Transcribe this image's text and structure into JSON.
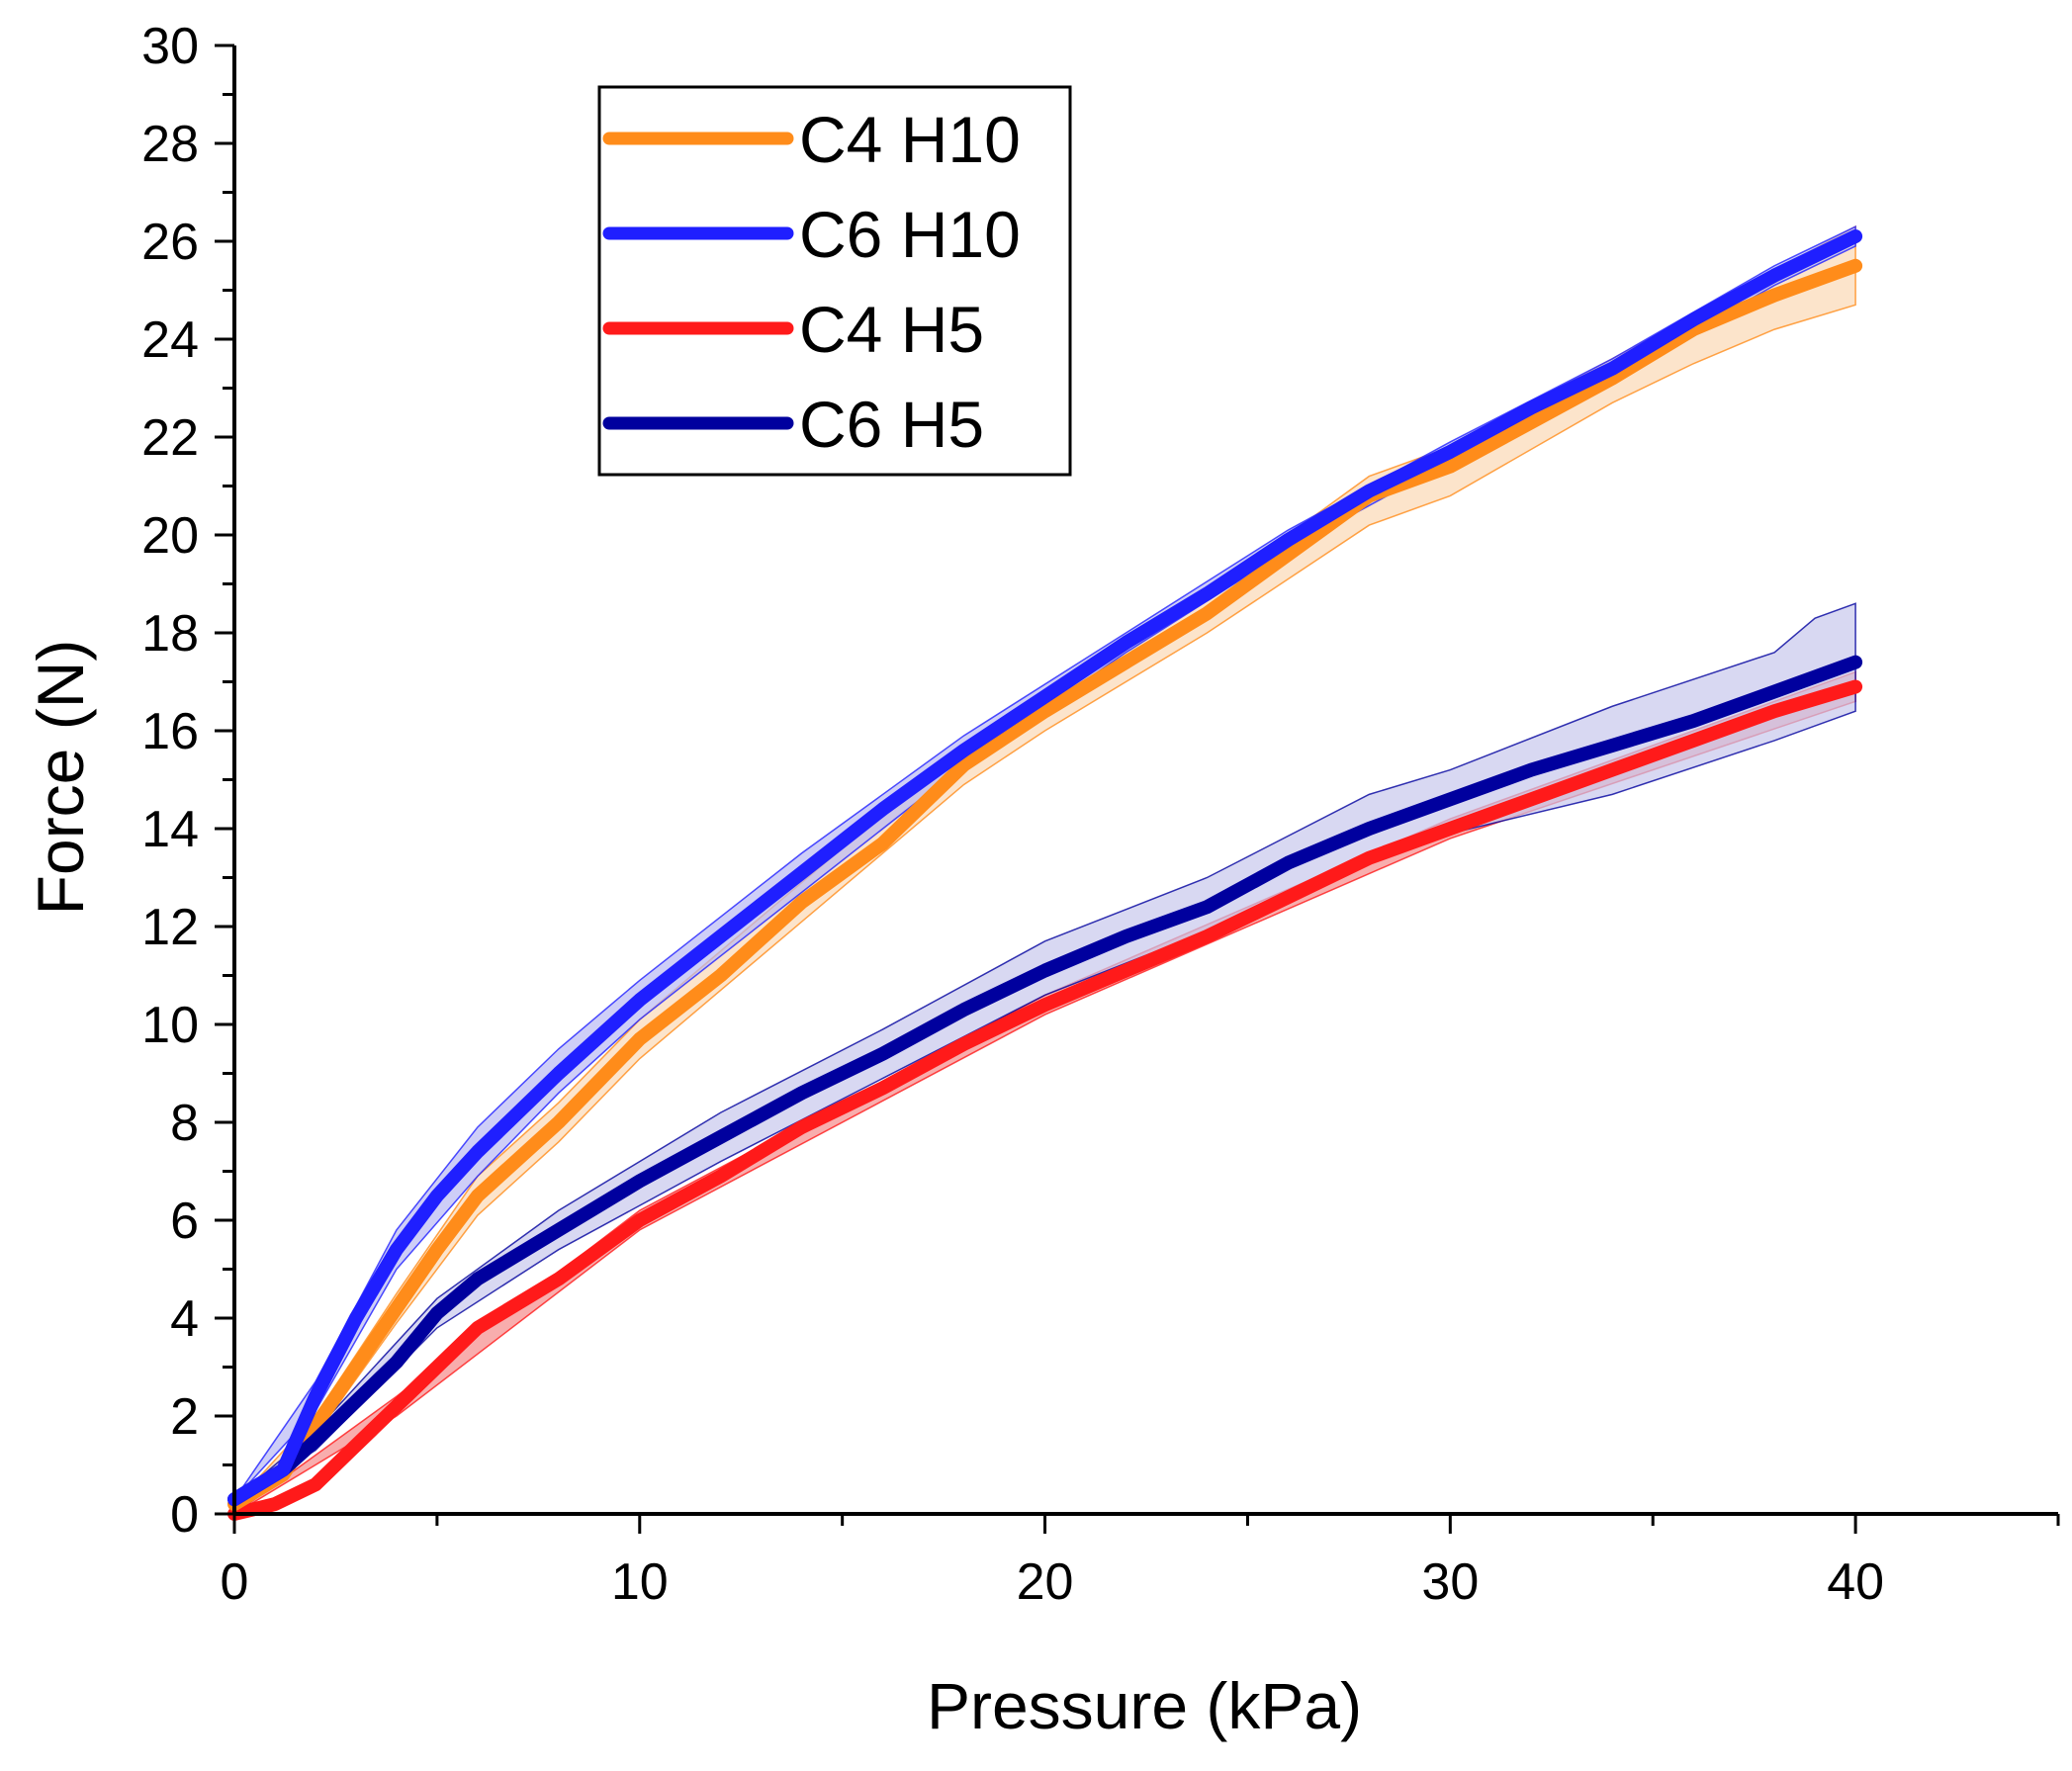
{
  "chart_data": {
    "type": "line",
    "title": "",
    "xlabel": "Pressure (kPa)",
    "ylabel": "Force (N)",
    "xlim": [
      0,
      45
    ],
    "ylim": [
      0,
      30
    ],
    "x_ticks": [
      0,
      10,
      20,
      30,
      40
    ],
    "x_tick_labels": [
      "0",
      "10",
      "20",
      "30",
      "40"
    ],
    "y_ticks": [
      0,
      2,
      4,
      6,
      8,
      10,
      12,
      14,
      16,
      18,
      20,
      22,
      24,
      26,
      28,
      30
    ],
    "y_tick_labels": [
      "0",
      "2",
      "4",
      "6",
      "8",
      "10",
      "12",
      "14",
      "16",
      "18",
      "20",
      "22",
      "24",
      "26",
      "28",
      "30"
    ],
    "grid": false,
    "legend_position": "top-left",
    "series": [
      {
        "name": "C4 H10",
        "color": "#ff8c1a",
        "band_color": "#fbd9b5",
        "points": [
          [
            0,
            0.2
          ],
          [
            1.2,
            0.8
          ],
          [
            2,
            1.8
          ],
          [
            3,
            3
          ],
          [
            4,
            4.2
          ],
          [
            5,
            5.4
          ],
          [
            6,
            6.5
          ],
          [
            8,
            8
          ],
          [
            10,
            9.7
          ],
          [
            12,
            11
          ],
          [
            14,
            12.5
          ],
          [
            16,
            13.7
          ],
          [
            18,
            15.3
          ],
          [
            20,
            16.4
          ],
          [
            22,
            17.4
          ],
          [
            24,
            18.4
          ],
          [
            26,
            19.6
          ],
          [
            28,
            20.8
          ],
          [
            30,
            21.4
          ],
          [
            32,
            22.3
          ],
          [
            34,
            23.2
          ],
          [
            36,
            24.2
          ],
          [
            38,
            24.9
          ],
          [
            40,
            25.5
          ]
        ],
        "band": [
          [
            0,
            0.2,
            0.2
          ],
          [
            2,
            1.6,
            2.0
          ],
          [
            4,
            3.9,
            4.5
          ],
          [
            6,
            6.1,
            6.9
          ],
          [
            8,
            7.6,
            8.4
          ],
          [
            10,
            9.3,
            10.1
          ],
          [
            14,
            12.1,
            12.9
          ],
          [
            18,
            14.9,
            15.7
          ],
          [
            20,
            16.0,
            16.8
          ],
          [
            24,
            18.0,
            18.8
          ],
          [
            28,
            20.2,
            21.2
          ],
          [
            30,
            20.8,
            21.8
          ],
          [
            34,
            22.7,
            23.6
          ],
          [
            36,
            23.5,
            24.5
          ],
          [
            38,
            24.2,
            25.4
          ],
          [
            40,
            24.7,
            26.3
          ]
        ]
      },
      {
        "name": "C6 H10",
        "color": "#1f1fff",
        "band_color": "#b9b9f3",
        "points": [
          [
            0,
            0.3
          ],
          [
            1.2,
            0.9
          ],
          [
            2,
            2.4
          ],
          [
            3,
            4.0
          ],
          [
            4,
            5.4
          ],
          [
            5,
            6.5
          ],
          [
            6,
            7.4
          ],
          [
            8,
            9.0
          ],
          [
            10,
            10.5
          ],
          [
            12,
            11.8
          ],
          [
            14,
            13.1
          ],
          [
            16,
            14.4
          ],
          [
            18,
            15.6
          ],
          [
            20,
            16.7
          ],
          [
            22,
            17.8
          ],
          [
            24,
            18.8
          ],
          [
            26,
            19.9
          ],
          [
            28,
            20.9
          ],
          [
            30,
            21.7
          ],
          [
            32,
            22.6
          ],
          [
            34,
            23.4
          ],
          [
            36,
            24.4
          ],
          [
            38,
            25.3
          ],
          [
            40,
            26.1
          ]
        ],
        "band": [
          [
            0,
            0.3,
            0.3
          ],
          [
            2,
            2.1,
            2.7
          ],
          [
            4,
            5.0,
            5.8
          ],
          [
            6,
            6.9,
            7.9
          ],
          [
            8,
            8.6,
            9.5
          ],
          [
            10,
            10.1,
            10.9
          ],
          [
            14,
            12.7,
            13.5
          ],
          [
            18,
            15.3,
            15.9
          ],
          [
            22,
            17.6,
            18.0
          ],
          [
            26,
            19.7,
            20.1
          ],
          [
            30,
            21.5,
            21.9
          ],
          [
            34,
            23.2,
            23.6
          ],
          [
            38,
            25.1,
            25.5
          ],
          [
            40,
            25.9,
            26.3
          ]
        ]
      },
      {
        "name": "C4 H5",
        "color": "#ff1a1a",
        "band_color": "#f58a8a",
        "points": [
          [
            0,
            0
          ],
          [
            1,
            0.2
          ],
          [
            2,
            0.6
          ],
          [
            3,
            1.4
          ],
          [
            4,
            2.2
          ],
          [
            5,
            3.0
          ],
          [
            6,
            3.8
          ],
          [
            8,
            4.8
          ],
          [
            10,
            6.0
          ],
          [
            12,
            6.9
          ],
          [
            14,
            7.9
          ],
          [
            16,
            8.7
          ],
          [
            18,
            9.6
          ],
          [
            20,
            10.4
          ],
          [
            22,
            11.1
          ],
          [
            24,
            11.8
          ],
          [
            26,
            12.6
          ],
          [
            28,
            13.4
          ],
          [
            30,
            14.0
          ],
          [
            32,
            14.6
          ],
          [
            34,
            15.2
          ],
          [
            36,
            15.8
          ],
          [
            38,
            16.4
          ],
          [
            40,
            16.9
          ]
        ],
        "band": [
          [
            0,
            0,
            0
          ],
          [
            4,
            2.0,
            2.4
          ],
          [
            10,
            5.8,
            6.2
          ],
          [
            20,
            10.2,
            10.6
          ],
          [
            30,
            13.8,
            14.2
          ],
          [
            40,
            16.6,
            17.2
          ]
        ]
      },
      {
        "name": "C6 H5",
        "color": "#00009e",
        "band_color": "#c8c8ec",
        "points": [
          [
            0,
            0.3
          ],
          [
            1.2,
            0.9
          ],
          [
            2,
            1.5
          ],
          [
            3,
            2.3
          ],
          [
            4,
            3.1
          ],
          [
            5,
            4.1
          ],
          [
            6,
            4.8
          ],
          [
            8,
            5.8
          ],
          [
            10,
            6.8
          ],
          [
            12,
            7.7
          ],
          [
            14,
            8.6
          ],
          [
            16,
            9.4
          ],
          [
            18,
            10.3
          ],
          [
            20,
            11.1
          ],
          [
            22,
            11.8
          ],
          [
            24,
            12.4
          ],
          [
            26,
            13.3
          ],
          [
            28,
            14.0
          ],
          [
            30,
            14.6
          ],
          [
            32,
            15.2
          ],
          [
            34,
            15.7
          ],
          [
            36,
            16.2
          ],
          [
            38,
            16.8
          ],
          [
            40,
            17.4
          ]
        ],
        "band": [
          [
            0,
            0.3,
            0.3
          ],
          [
            2,
            1.3,
            1.7
          ],
          [
            5,
            3.8,
            4.4
          ],
          [
            8,
            5.4,
            6.2
          ],
          [
            12,
            7.2,
            8.2
          ],
          [
            16,
            8.9,
            9.9
          ],
          [
            20,
            10.6,
            11.7
          ],
          [
            24,
            11.9,
            13.0
          ],
          [
            28,
            13.4,
            14.7
          ],
          [
            30,
            13.9,
            15.2
          ],
          [
            34,
            14.7,
            16.5
          ],
          [
            38,
            15.8,
            17.6
          ],
          [
            39,
            16.1,
            18.3
          ],
          [
            40,
            16.4,
            18.6
          ]
        ]
      }
    ]
  }
}
